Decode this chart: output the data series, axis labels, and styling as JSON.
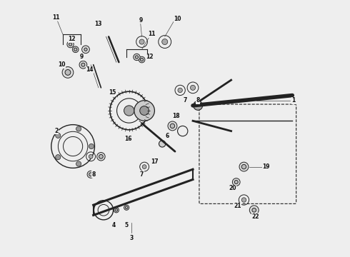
{
  "fig_bg": "#eeeeee",
  "bg_color": "#eeeeee",
  "dark": "#222222",
  "label_fs": 5.5
}
